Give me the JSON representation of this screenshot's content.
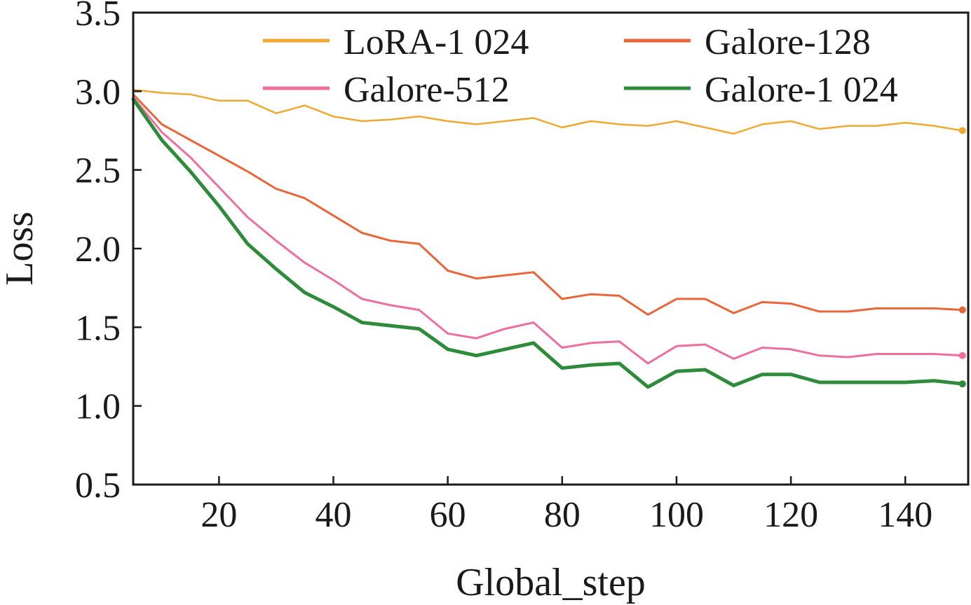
{
  "chart_data": {
    "type": "line",
    "xlabel": "Global_step",
    "ylabel": "Loss",
    "xlim": [
      5,
      151
    ],
    "ylim": [
      0.5,
      3.5
    ],
    "x_ticks": [
      20,
      40,
      60,
      80,
      100,
      120,
      140
    ],
    "x_tick_labels": [
      "20",
      "40",
      "60",
      "80",
      "100",
      "120",
      "140"
    ],
    "y_ticks": [
      0.5,
      1.0,
      1.5,
      2.0,
      2.5,
      3.0,
      3.5
    ],
    "y_tick_labels": [
      "0.5",
      "1.0",
      "1.5",
      "2.0",
      "2.5",
      "3.0",
      "3.5"
    ],
    "grid": false,
    "legend_position": "top",
    "x": [
      5,
      10,
      15,
      20,
      25,
      30,
      35,
      40,
      45,
      50,
      55,
      60,
      65,
      70,
      75,
      80,
      85,
      90,
      95,
      100,
      105,
      110,
      115,
      120,
      125,
      130,
      135,
      140,
      145,
      150
    ],
    "series": [
      {
        "name": "LoRA-1 024",
        "color": "#F0A830",
        "values": [
          3.01,
          2.99,
          2.98,
          2.94,
          2.94,
          2.86,
          2.91,
          2.84,
          2.81,
          2.82,
          2.84,
          2.81,
          2.79,
          2.81,
          2.83,
          2.77,
          2.81,
          2.79,
          2.78,
          2.81,
          2.77,
          2.73,
          2.79,
          2.81,
          2.76,
          2.78,
          2.78,
          2.8,
          2.78,
          2.75
        ]
      },
      {
        "name": "Galore-128",
        "color": "#E8663A",
        "values": [
          2.98,
          2.79,
          2.69,
          2.59,
          2.49,
          2.38,
          2.32,
          2.21,
          2.1,
          2.05,
          2.03,
          1.86,
          1.81,
          1.83,
          1.85,
          1.68,
          1.71,
          1.7,
          1.58,
          1.68,
          1.68,
          1.59,
          1.66,
          1.65,
          1.6,
          1.6,
          1.62,
          1.62,
          1.62,
          1.61
        ]
      },
      {
        "name": "Galore-512",
        "color": "#EE6E9E",
        "values": [
          2.96,
          2.74,
          2.58,
          2.39,
          2.2,
          2.05,
          1.91,
          1.8,
          1.68,
          1.64,
          1.61,
          1.46,
          1.43,
          1.49,
          1.53,
          1.37,
          1.4,
          1.41,
          1.27,
          1.38,
          1.39,
          1.3,
          1.37,
          1.36,
          1.32,
          1.31,
          1.33,
          1.33,
          1.33,
          1.32
        ]
      },
      {
        "name": "Galore-1 024",
        "color": "#2E8B3A",
        "values": [
          2.95,
          2.69,
          2.49,
          2.27,
          2.03,
          1.87,
          1.72,
          1.63,
          1.53,
          1.51,
          1.49,
          1.36,
          1.32,
          1.36,
          1.4,
          1.24,
          1.26,
          1.27,
          1.12,
          1.22,
          1.23,
          1.13,
          1.2,
          1.2,
          1.15,
          1.15,
          1.15,
          1.15,
          1.16,
          1.14
        ]
      }
    ]
  }
}
